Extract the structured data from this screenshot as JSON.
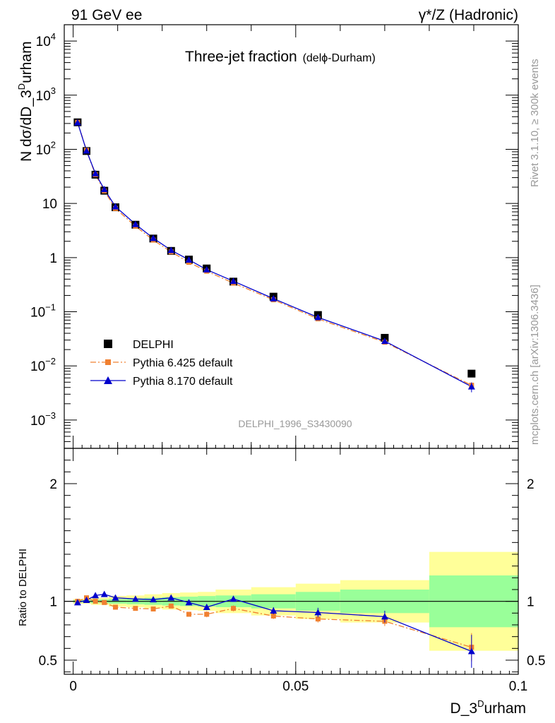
{
  "header": {
    "left": "91 GeV ee",
    "right": "γ*/Z (Hadronic)"
  },
  "side_labels": {
    "rivet": "Rivet 3.1.10, ≥ 300k events",
    "mcplots": "mcplots.cern.ch [arXiv:1306.3436]"
  },
  "chart_data": {
    "type": "scatter",
    "title_main": "Three-jet fraction",
    "title_sub": "(delϕ-Durham)",
    "analysis_tag": "DELPHI_1996_S3430090",
    "ylabel": "N dσ/dD_3",
    "ylabel_sup": "D",
    "ylabel_end": "urham",
    "xlabel": "D_3",
    "xlabel_sup": "D",
    "xlabel_end": "urham",
    "ratio_ylabel": "Ratio to DELPHI",
    "xlim": [
      -0.002,
      0.1
    ],
    "ylim_log": [
      0.0003,
      20000
    ],
    "ratio_ylim": [
      0.38,
      2.3
    ],
    "y_ticks": [
      {
        "v": 0.001,
        "base": "10",
        "exp": "−3"
      },
      {
        "v": 0.01,
        "base": "10",
        "exp": "−2"
      },
      {
        "v": 0.1,
        "base": "10",
        "exp": "−1"
      },
      {
        "v": 1,
        "base": "1",
        "exp": ""
      },
      {
        "v": 10,
        "base": "10",
        "exp": ""
      },
      {
        "v": 100,
        "base": "10",
        "exp": "2"
      },
      {
        "v": 1000,
        "base": "10",
        "exp": "3"
      },
      {
        "v": 10000,
        "base": "10",
        "exp": "4"
      }
    ],
    "x_ticks": [
      {
        "v": 0,
        "label": "0"
      },
      {
        "v": 0.05,
        "label": "0.05"
      },
      {
        "v": 0.1,
        "label": "0.1"
      }
    ],
    "ratio_ticks": [
      {
        "v": 0.5,
        "label": "0.5"
      },
      {
        "v": 1,
        "label": "1"
      },
      {
        "v": 2,
        "label": "2"
      }
    ],
    "legend": [
      {
        "name": "DELPHI"
      },
      {
        "name": "Pythia 6.425 default"
      },
      {
        "name": "Pythia 8.170 default"
      }
    ],
    "x": [
      0.001,
      0.003,
      0.005,
      0.007,
      0.0095,
      0.014,
      0.018,
      0.022,
      0.026,
      0.03,
      0.036,
      0.045,
      0.055,
      0.07,
      0.0895
    ],
    "bins": [
      [
        0,
        0.002
      ],
      [
        0.002,
        0.004
      ],
      [
        0.004,
        0.006
      ],
      [
        0.006,
        0.008
      ],
      [
        0.008,
        0.012
      ],
      [
        0.012,
        0.016
      ],
      [
        0.016,
        0.02
      ],
      [
        0.02,
        0.024
      ],
      [
        0.024,
        0.028
      ],
      [
        0.028,
        0.032
      ],
      [
        0.032,
        0.04
      ],
      [
        0.04,
        0.05
      ],
      [
        0.05,
        0.06
      ],
      [
        0.06,
        0.08
      ],
      [
        0.08,
        0.1
      ]
    ],
    "series": [
      {
        "name": "DELPHI",
        "color": "#000000",
        "values": [
          315,
          93,
          34,
          17.2,
          8.5,
          4.05,
          2.25,
          1.33,
          0.92,
          0.63,
          0.36,
          0.19,
          0.087,
          0.033,
          0.0072
        ]
      },
      {
        "name": "Pythia 6.425 default",
        "color": "#f08030",
        "ratio": [
          1.0,
          1.03,
          1.0,
          0.99,
          0.95,
          0.94,
          0.935,
          0.96,
          0.89,
          0.89,
          0.94,
          0.875,
          0.85,
          0.83,
          0.61
        ],
        "ratio_err": [
          0.01,
          0.01,
          0.01,
          0.01,
          0.01,
          0.01,
          0.012,
          0.015,
          0.02,
          0.025,
          0.025,
          0.025,
          0.03,
          0.04,
          0.12
        ]
      },
      {
        "name": "Pythia 8.170 default",
        "color": "#0000cc",
        "ratio": [
          0.99,
          1.01,
          1.05,
          1.06,
          1.03,
          1.02,
          1.015,
          1.03,
          0.99,
          0.95,
          1.02,
          0.92,
          0.905,
          0.87,
          0.575
        ],
        "ratio_err": [
          0.01,
          0.01,
          0.01,
          0.01,
          0.01,
          0.01,
          0.012,
          0.015,
          0.02,
          0.025,
          0.025,
          0.03,
          0.04,
          0.05,
          0.14
        ]
      }
    ],
    "bands": {
      "green_halfwidth": [
        0.01,
        0.01,
        0.015,
        0.015,
        0.02,
        0.025,
        0.03,
        0.035,
        0.04,
        0.045,
        0.05,
        0.06,
        0.08,
        0.1,
        0.22
      ],
      "yellow_halfwidth": [
        0.02,
        0.02,
        0.03,
        0.03,
        0.045,
        0.05,
        0.06,
        0.07,
        0.075,
        0.08,
        0.1,
        0.12,
        0.15,
        0.18,
        0.42
      ]
    }
  }
}
